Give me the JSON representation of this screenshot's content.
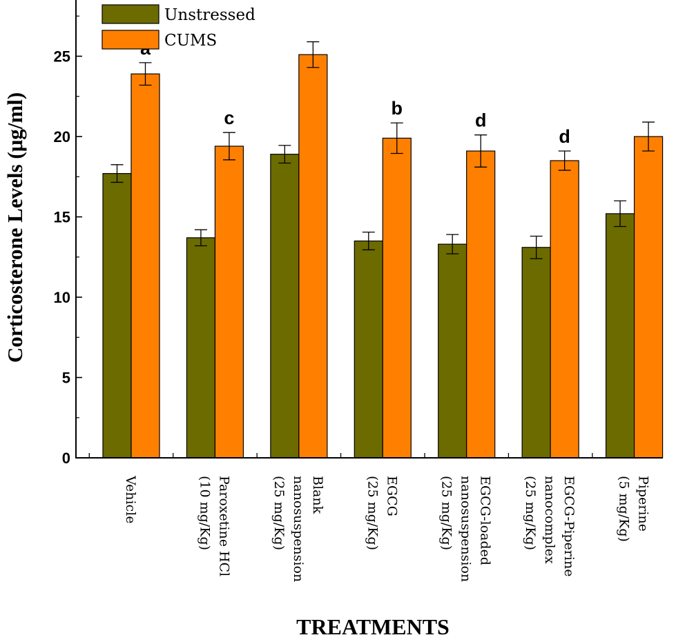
{
  "chart_data": {
    "type": "bar",
    "categories": [
      [
        "Vehicle"
      ],
      [
        "Paroxetine HCl",
        "(10 mg/Kg)"
      ],
      [
        "Blank",
        "nanosuspension",
        "(25 mg/Kg)"
      ],
      [
        "EGCG",
        "(25 mg/Kg)"
      ],
      [
        "EGCG-loaded",
        "nanosuspension",
        "(25 mg/Kg)"
      ],
      [
        "EGCG-Piperine",
        "nanocomplex",
        "(25 mg/Kg)"
      ],
      [
        "Piperine",
        "(5 mg/Kg)"
      ]
    ],
    "series": [
      {
        "name": "Unstressed",
        "color": "#6b6b00",
        "values": [
          17.7,
          13.7,
          18.9,
          13.5,
          13.3,
          13.1,
          15.2
        ],
        "errors": [
          0.55,
          0.5,
          0.55,
          0.55,
          0.6,
          0.7,
          0.8
        ]
      },
      {
        "name": "CUMS",
        "color": "#ff8000",
        "values": [
          23.9,
          19.4,
          25.1,
          19.9,
          19.1,
          18.5,
          20.0
        ],
        "errors": [
          0.7,
          0.85,
          0.8,
          0.95,
          1.0,
          0.6,
          0.9
        ]
      }
    ],
    "significance_labels": [
      "a",
      "c",
      "",
      "b",
      "d",
      "d",
      ""
    ],
    "xlabel": "TREATMENTS",
    "ylabel": "Corticosterone Levels (μg/ml)",
    "ylim": [
      0,
      28.5
    ],
    "yticks": [
      0,
      5,
      10,
      15,
      20,
      25
    ],
    "grid": false,
    "legend_position": "top-left"
  }
}
